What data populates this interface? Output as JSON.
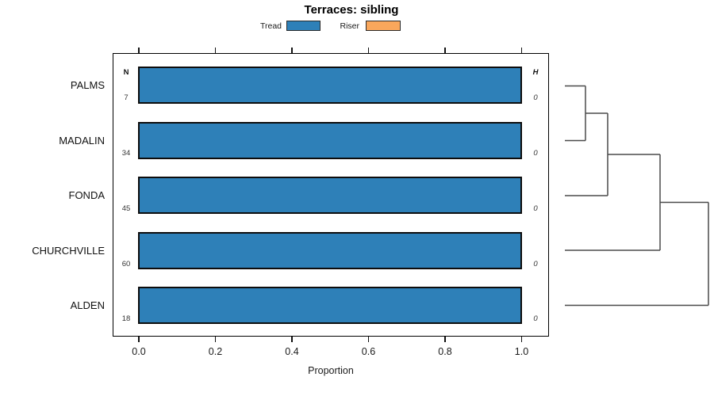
{
  "title": "Terraces: sibling",
  "legend": {
    "items": [
      {
        "label": "Tread",
        "color": "#2e80b8"
      },
      {
        "label": "Riser",
        "color": "#f9a75c"
      }
    ]
  },
  "columns": {
    "n_header": "N",
    "h_header": "H"
  },
  "chart_data": {
    "type": "bar",
    "orientation": "horizontal",
    "title": "Terraces: sibling",
    "categories": [
      "PALMS",
      "MADALIN",
      "FONDA",
      "CHURCHVILLE",
      "ALDEN"
    ],
    "n_values": [
      7,
      34,
      45,
      60,
      18
    ],
    "h_values": [
      0,
      0,
      0,
      0,
      0
    ],
    "series": [
      {
        "name": "Tread",
        "color": "#2e80b8",
        "values": [
          1.0,
          1.0,
          1.0,
          1.0,
          1.0
        ]
      },
      {
        "name": "Riser",
        "color": "#f9a75c",
        "values": [
          0,
          0,
          0,
          0,
          0
        ]
      }
    ],
    "xlabel": "Proportion",
    "xlim": [
      0,
      1
    ],
    "x_ticks": [
      "0.0",
      "0.2",
      "0.4",
      "0.6",
      "0.8",
      "1.0"
    ],
    "grid": false,
    "legend_position": "top",
    "dendrogram": {
      "side": "right",
      "structure": "((((PALMS,MADALIN),FONDA),CHURCHVILLE),ALDEN)",
      "merge_heights": [
        0,
        0,
        0,
        0
      ]
    }
  }
}
